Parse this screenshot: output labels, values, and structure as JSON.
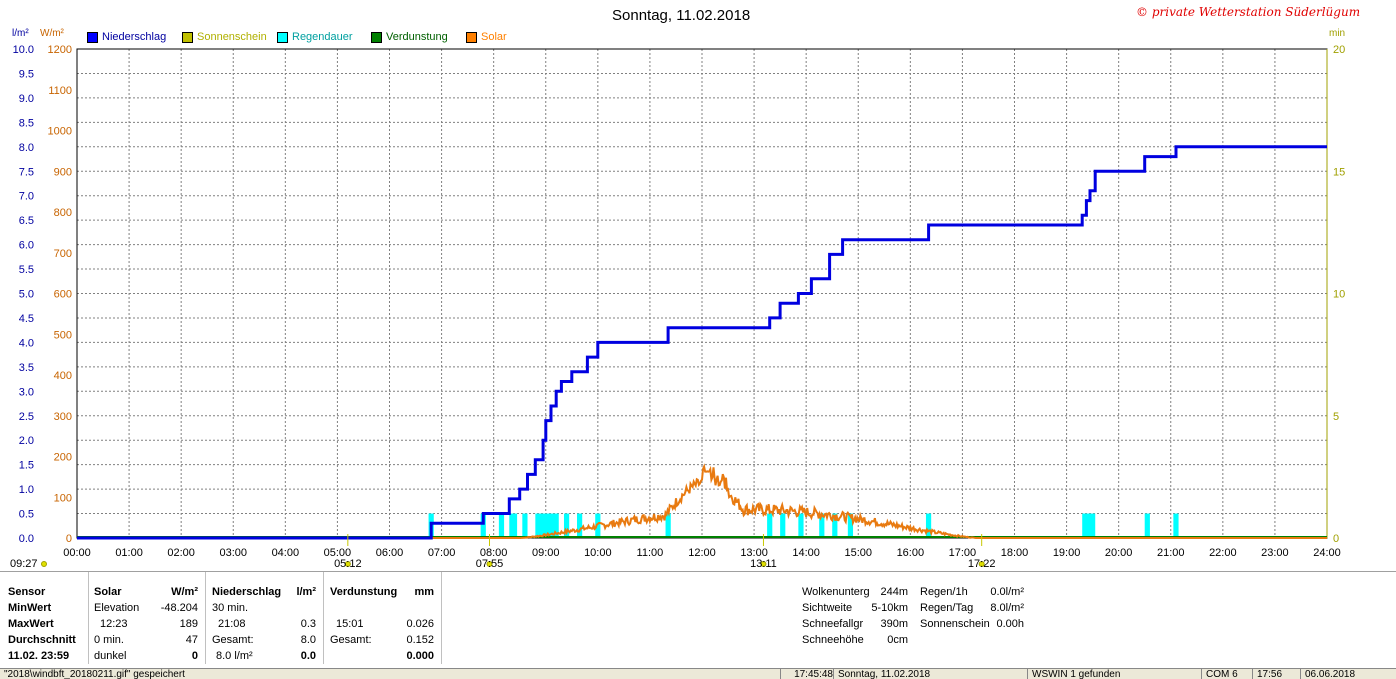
{
  "header": {
    "title": "Sonntag, 11.02.2018",
    "copyright": "© private Wetterstation Süderlügum",
    "unit_left1": "l/m²",
    "unit_left2": "W/m²",
    "unit_right": "min"
  },
  "legend": [
    {
      "label": "Niederschlag",
      "color": "#0000ff",
      "text_color": "#0000a0"
    },
    {
      "label": "Sonnenschein",
      "color": "#c0c000",
      "text_color": "#b0b000"
    },
    {
      "label": "Regendauer",
      "color": "#00ffff",
      "text_color": "#00a0a0"
    },
    {
      "label": "Verdunstung",
      "color": "#008000",
      "text_color": "#006000"
    },
    {
      "label": "Solar",
      "color": "#ff8000",
      "text_color": "#ff8000"
    }
  ],
  "colors": {
    "precip": "#0000e0",
    "rain_duration": "#00ffff",
    "solar": "#e87a10",
    "evaporation": "#008000",
    "sunshine": "#c8c800",
    "grid": "#808080",
    "axis_left1": "#0000a0",
    "axis_left2": "#c86400",
    "axis_right": "#a0a000"
  },
  "chart_data": {
    "type": "line",
    "x_range": [
      0,
      24
    ],
    "x_ticks": [
      "00:00",
      "01:00",
      "02:00",
      "03:00",
      "04:00",
      "05:00",
      "06:00",
      "07:00",
      "08:00",
      "09:00",
      "10:00",
      "11:00",
      "12:00",
      "13:00",
      "14:00",
      "15:00",
      "16:00",
      "17:00",
      "18:00",
      "19:00",
      "20:00",
      "21:00",
      "22:00",
      "23:00",
      "24:00"
    ],
    "y_left1_ticks": [
      "0.0",
      "0.5",
      "1.0",
      "1.5",
      "2.0",
      "2.5",
      "3.0",
      "3.5",
      "4.0",
      "4.5",
      "5.0",
      "5.5",
      "6.0",
      "6.5",
      "7.0",
      "7.5",
      "8.0",
      "8.5",
      "9.0",
      "9.5",
      "10.0"
    ],
    "y_left1_range": [
      0,
      10
    ],
    "y_left2_ticks": [
      "0",
      "100",
      "200",
      "300",
      "400",
      "500",
      "600",
      "700",
      "800",
      "900",
      "1000",
      "1100",
      "1200"
    ],
    "y_left2_range": [
      0,
      1200
    ],
    "y_right_ticks": [
      "0",
      "5",
      "10",
      "15",
      "20"
    ],
    "y_right_range": [
      0,
      20
    ],
    "series": [
      {
        "name": "Niederschlag",
        "points": [
          [
            0,
            0
          ],
          [
            6.8,
            0
          ],
          [
            6.8,
            0.3
          ],
          [
            7.8,
            0.3
          ],
          [
            7.8,
            0.5
          ],
          [
            8.3,
            0.5
          ],
          [
            8.3,
            0.8
          ],
          [
            8.5,
            0.8
          ],
          [
            8.5,
            1.0
          ],
          [
            8.65,
            1.0
          ],
          [
            8.65,
            1.3
          ],
          [
            8.8,
            1.3
          ],
          [
            8.8,
            1.6
          ],
          [
            8.95,
            1.6
          ],
          [
            8.95,
            2.0
          ],
          [
            9.0,
            2.0
          ],
          [
            9.0,
            2.4
          ],
          [
            9.1,
            2.4
          ],
          [
            9.1,
            2.7
          ],
          [
            9.2,
            2.7
          ],
          [
            9.2,
            3.0
          ],
          [
            9.3,
            3.0
          ],
          [
            9.3,
            3.2
          ],
          [
            9.5,
            3.2
          ],
          [
            9.5,
            3.4
          ],
          [
            9.8,
            3.4
          ],
          [
            9.8,
            3.7
          ],
          [
            10.0,
            3.7
          ],
          [
            10.0,
            4.0
          ],
          [
            11.35,
            4.0
          ],
          [
            11.35,
            4.3
          ],
          [
            13.3,
            4.3
          ],
          [
            13.3,
            4.5
          ],
          [
            13.5,
            4.5
          ],
          [
            13.5,
            4.8
          ],
          [
            13.85,
            4.8
          ],
          [
            13.85,
            5.0
          ],
          [
            14.1,
            5.0
          ],
          [
            14.1,
            5.3
          ],
          [
            14.45,
            5.3
          ],
          [
            14.45,
            5.8
          ],
          [
            14.7,
            5.8
          ],
          [
            14.7,
            6.1
          ],
          [
            16.35,
            6.1
          ],
          [
            16.35,
            6.4
          ],
          [
            19.3,
            6.4
          ],
          [
            19.3,
            6.6
          ],
          [
            19.38,
            6.6
          ],
          [
            19.38,
            6.9
          ],
          [
            19.45,
            6.9
          ],
          [
            19.45,
            7.1
          ],
          [
            19.55,
            7.1
          ],
          [
            19.55,
            7.5
          ],
          [
            20.5,
            7.5
          ],
          [
            20.5,
            7.8
          ],
          [
            21.1,
            7.8
          ],
          [
            21.1,
            8.0
          ],
          [
            24,
            8.0
          ]
        ]
      },
      {
        "name": "Regendauer",
        "intervals": [
          [
            6.75,
            6.85
          ],
          [
            7.75,
            7.85
          ],
          [
            8.1,
            8.2
          ],
          [
            8.3,
            8.45
          ],
          [
            8.55,
            8.65
          ],
          [
            8.8,
            9.25
          ],
          [
            9.35,
            9.45
          ],
          [
            9.6,
            9.7
          ],
          [
            9.95,
            10.05
          ],
          [
            11.3,
            11.4
          ],
          [
            13.25,
            13.35
          ],
          [
            13.5,
            13.6
          ],
          [
            13.85,
            13.95
          ],
          [
            14.25,
            14.35
          ],
          [
            14.5,
            14.6
          ],
          [
            14.8,
            14.9
          ],
          [
            16.3,
            16.4
          ],
          [
            19.3,
            19.55
          ],
          [
            20.5,
            20.6
          ],
          [
            21.05,
            21.15
          ]
        ],
        "value_min": 1
      },
      {
        "name": "Solar",
        "peak": 189,
        "start": 8.5,
        "end": 17.3
      }
    ],
    "markers": [
      {
        "label": "05:12",
        "x": 5.2
      },
      {
        "label": "07:55",
        "x": 7.92
      },
      {
        "label": "13:11",
        "x": 13.18
      },
      {
        "label": "17:22",
        "x": 17.37
      }
    ],
    "corner_left_label": "09:27"
  },
  "stats": {
    "sensor": {
      "h": "Sensor",
      "rows": [
        "MinWert",
        "MaxWert",
        "Durchschnitt",
        "11.02. 23:59"
      ]
    },
    "solar": {
      "h": "Solar",
      "unit": "W/m²",
      "rows": [
        [
          "Elevation",
          "-48.204"
        ],
        [
          "12:23",
          "189"
        ],
        [
          "0 min.",
          "47"
        ],
        [
          "dunkel",
          "0"
        ]
      ]
    },
    "precip": {
      "h": "Niederschlag",
      "unit": "l/m²",
      "rows": [
        [
          "30 min.",
          ""
        ],
        [
          "21:08",
          "0.3"
        ],
        [
          "Gesamt:",
          "8.0"
        ],
        [
          "8.0 l/m²",
          "0.0"
        ]
      ]
    },
    "evap": {
      "h": "Verdunstung",
      "unit": "mm",
      "rows": [
        [
          "",
          ""
        ],
        [
          "15:01",
          "0.026"
        ],
        [
          "Gesamt:",
          "0.152"
        ],
        [
          "",
          "0.000"
        ]
      ]
    },
    "weather": [
      [
        "Wolkenunterg",
        "244m"
      ],
      [
        "Sichtweite",
        "5-10km"
      ],
      [
        "Schneefallgr",
        "390m"
      ],
      [
        "Schneehöhe",
        "0cm"
      ]
    ],
    "rain": [
      [
        "Regen/1h",
        "0.0l/m²"
      ],
      [
        "Regen/Tag",
        "8.0l/m²"
      ],
      [
        "Sonnenschein",
        "0.00h"
      ]
    ]
  },
  "statusbar": {
    "file": "\"2018\\windbft_20180211.gif\" gespeichert",
    "time": "17:45:48",
    "date": "Sonntag, 11.02.2018",
    "wswin": "WSWIN 1 gefunden",
    "port": "COM 6",
    "clock": "17:56",
    "today": "06.06.2018"
  }
}
